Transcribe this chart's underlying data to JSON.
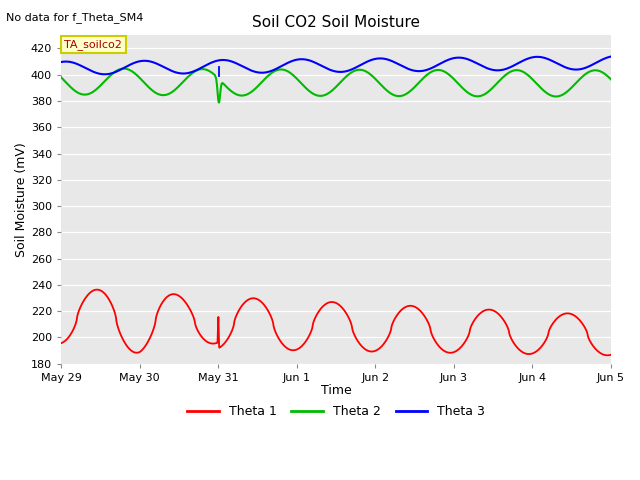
{
  "title": "Soil CO2 Soil Moisture",
  "xlabel": "Time",
  "ylabel": "Soil Moisture (mV)",
  "no_data_text": "No data for f_Theta_SM4",
  "annotation_text": "TA_soilco2",
  "ylim": [
    180,
    430
  ],
  "yticks": [
    180,
    200,
    220,
    240,
    260,
    280,
    300,
    320,
    340,
    360,
    380,
    400,
    420
  ],
  "x_tick_labels": [
    "May 29",
    "May 30",
    "May 31",
    "Jun 1",
    "Jun 2",
    "Jun 3",
    "Jun 4",
    "Jun 5"
  ],
  "bg_color": "#e8e8e8",
  "colors": {
    "theta1": "#ff0000",
    "theta2": "#00bb00",
    "theta3": "#0000ff"
  },
  "legend_labels": [
    "Theta 1",
    "Theta 2",
    "Theta 3"
  ],
  "annotation_color": "#aa0000",
  "annotation_bg": "#ffffcc",
  "annotation_edge": "#cccc00"
}
